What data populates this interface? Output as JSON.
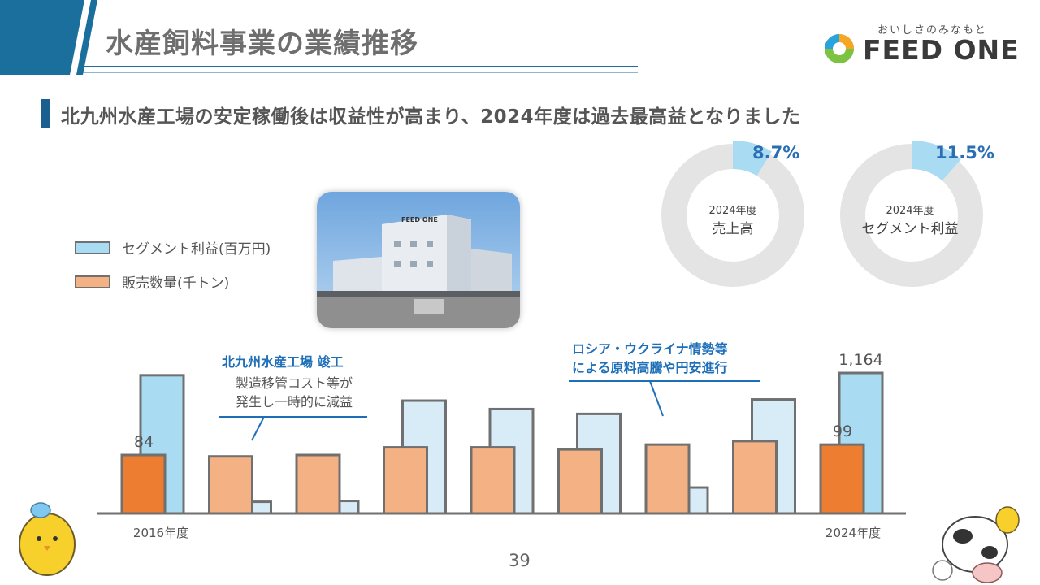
{
  "header": {
    "title": "水産飼料事業の業績推移",
    "logo_tagline": "おいしさのみなもと",
    "logo_text": "FEED ONE"
  },
  "subtitle": "北九州水産工場の安定稼働後は収益性が高まり、2024年度は過去最高益となりました",
  "legend": {
    "segment_profit": "セグメント利益(百万円)",
    "sales_volume": "販売数量(千トン)"
  },
  "photo": {
    "sign_text": "FEED ONE"
  },
  "donuts": [
    {
      "year": "2024年度",
      "label": "売上高",
      "value_text": "8.7%",
      "value": 8.7
    },
    {
      "year": "2024年度",
      "label": "セグメント利益",
      "value_text": "11.5%",
      "value": 11.5
    }
  ],
  "annotations": {
    "plant_title": "北九州水産工場 竣工",
    "plant_body_1": "製造移管コスト等が",
    "plant_body_2": "発生し一時的に減益",
    "russia_1": "ロシア・ウクライナ情勢等",
    "russia_2": "による原料高騰や円安進行"
  },
  "chart_data": {
    "type": "bar",
    "categories": [
      "2016年度",
      "",
      "",
      "",
      "",
      "",
      "",
      "",
      "2024年度"
    ],
    "xlabel": "",
    "ylabel": "",
    "series": [
      {
        "name": "販売数量(千トン)",
        "values": [
          84,
          82,
          84,
          95,
          95,
          92,
          99,
          104,
          99
        ]
      },
      {
        "name": "セグメント利益(百万円)",
        "values": [
          1145,
          97,
          104,
          935,
          865,
          825,
          215,
          945,
          1164
        ]
      }
    ],
    "data_labels": [
      "84",
      "99",
      "1,164"
    ],
    "highlight_first_and_last": true
  },
  "footer": {
    "page_number": "39"
  },
  "colors": {
    "accent_blue": "#1e6fb8",
    "title_bar": "#1a6f9c",
    "volume_highlight": "#ed7d31",
    "volume_regular": "#f4b183",
    "profit_highlight": "#a9dcf2",
    "profit_regular": "#d7ecf7",
    "donut_gray": "#e4e4e4",
    "donut_blue": "#a9dcf2"
  }
}
